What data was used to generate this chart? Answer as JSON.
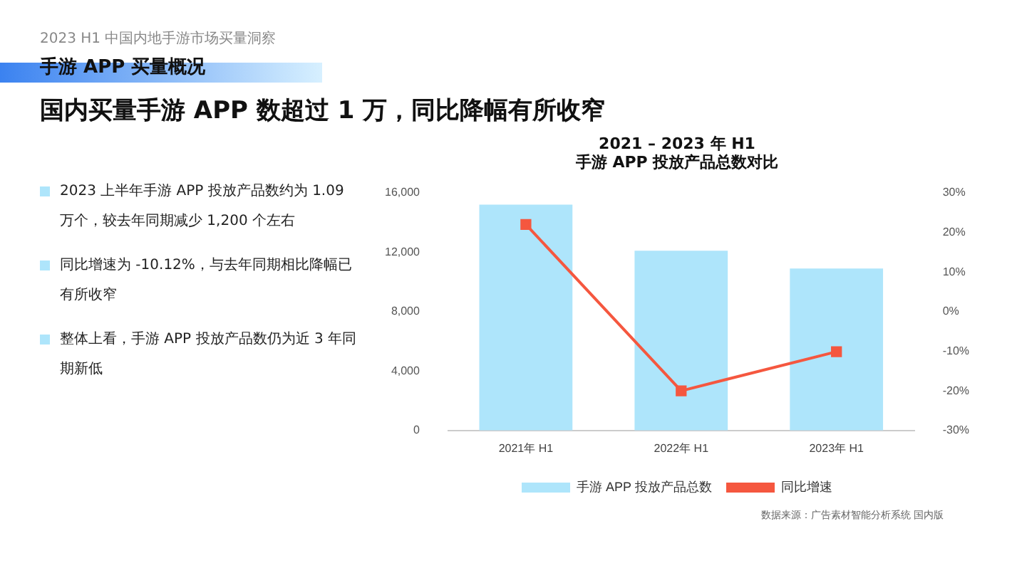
{
  "chart_data": {
    "type": "bar",
    "title": "2021 – 2023 年 H1\n手游 APP 投放产品总数对比",
    "categories": [
      "2021年 H1",
      "2022年 H1",
      "2023年 H1"
    ],
    "series": [
      {
        "name": "手游 APP 投放产品总数",
        "color": "#aee5fb",
        "values": [
          15200,
          12100,
          10900
        ]
      },
      {
        "name": "同比增速",
        "type": "line",
        "axis": "y2",
        "color": "#f5573f",
        "values": [
          22,
          -20,
          -10.12
        ]
      }
    ],
    "ylim": [
      0,
      16000
    ],
    "yticks": [
      {
        "value": 0,
        "label": "0"
      },
      {
        "value": 4000,
        "label": "4,000"
      },
      {
        "value": 8000,
        "label": "8,000"
      },
      {
        "value": 12000,
        "label": "12,000"
      },
      {
        "value": 16000,
        "label": "16,000"
      }
    ],
    "y2lim": [
      -30,
      30
    ],
    "y2ticks": [
      {
        "value": -30,
        "label": "-30%"
      },
      {
        "value": -20,
        "label": "-20%"
      },
      {
        "value": -10,
        "label": "-10%"
      },
      {
        "value": 0,
        "label": "0%"
      },
      {
        "value": 10,
        "label": "10%"
      },
      {
        "value": 20,
        "label": "20%"
      },
      {
        "value": 30,
        "label": "30%"
      }
    ],
    "grid": false,
    "legend": "bottom",
    "marker": "square",
    "annotations": [
      "2023 H1 中国内地手游市场买量洞察",
      "手游 APP 买量概况",
      "国内买量手游 APP 数超过 1 万，同比降幅有所收窄",
      "2023 上半年手游 APP 投放产品数约为 1.09 万个，较去年同期减少 1,200 个左右",
      "同比增速为 -10.12%，与去年同期相比降幅已有所收窄",
      "整体上看，手游 APP 投放产品数仍为近 3 年同期新低",
      "数据来源：广告素材智能分析系统 国内版"
    ]
  }
}
